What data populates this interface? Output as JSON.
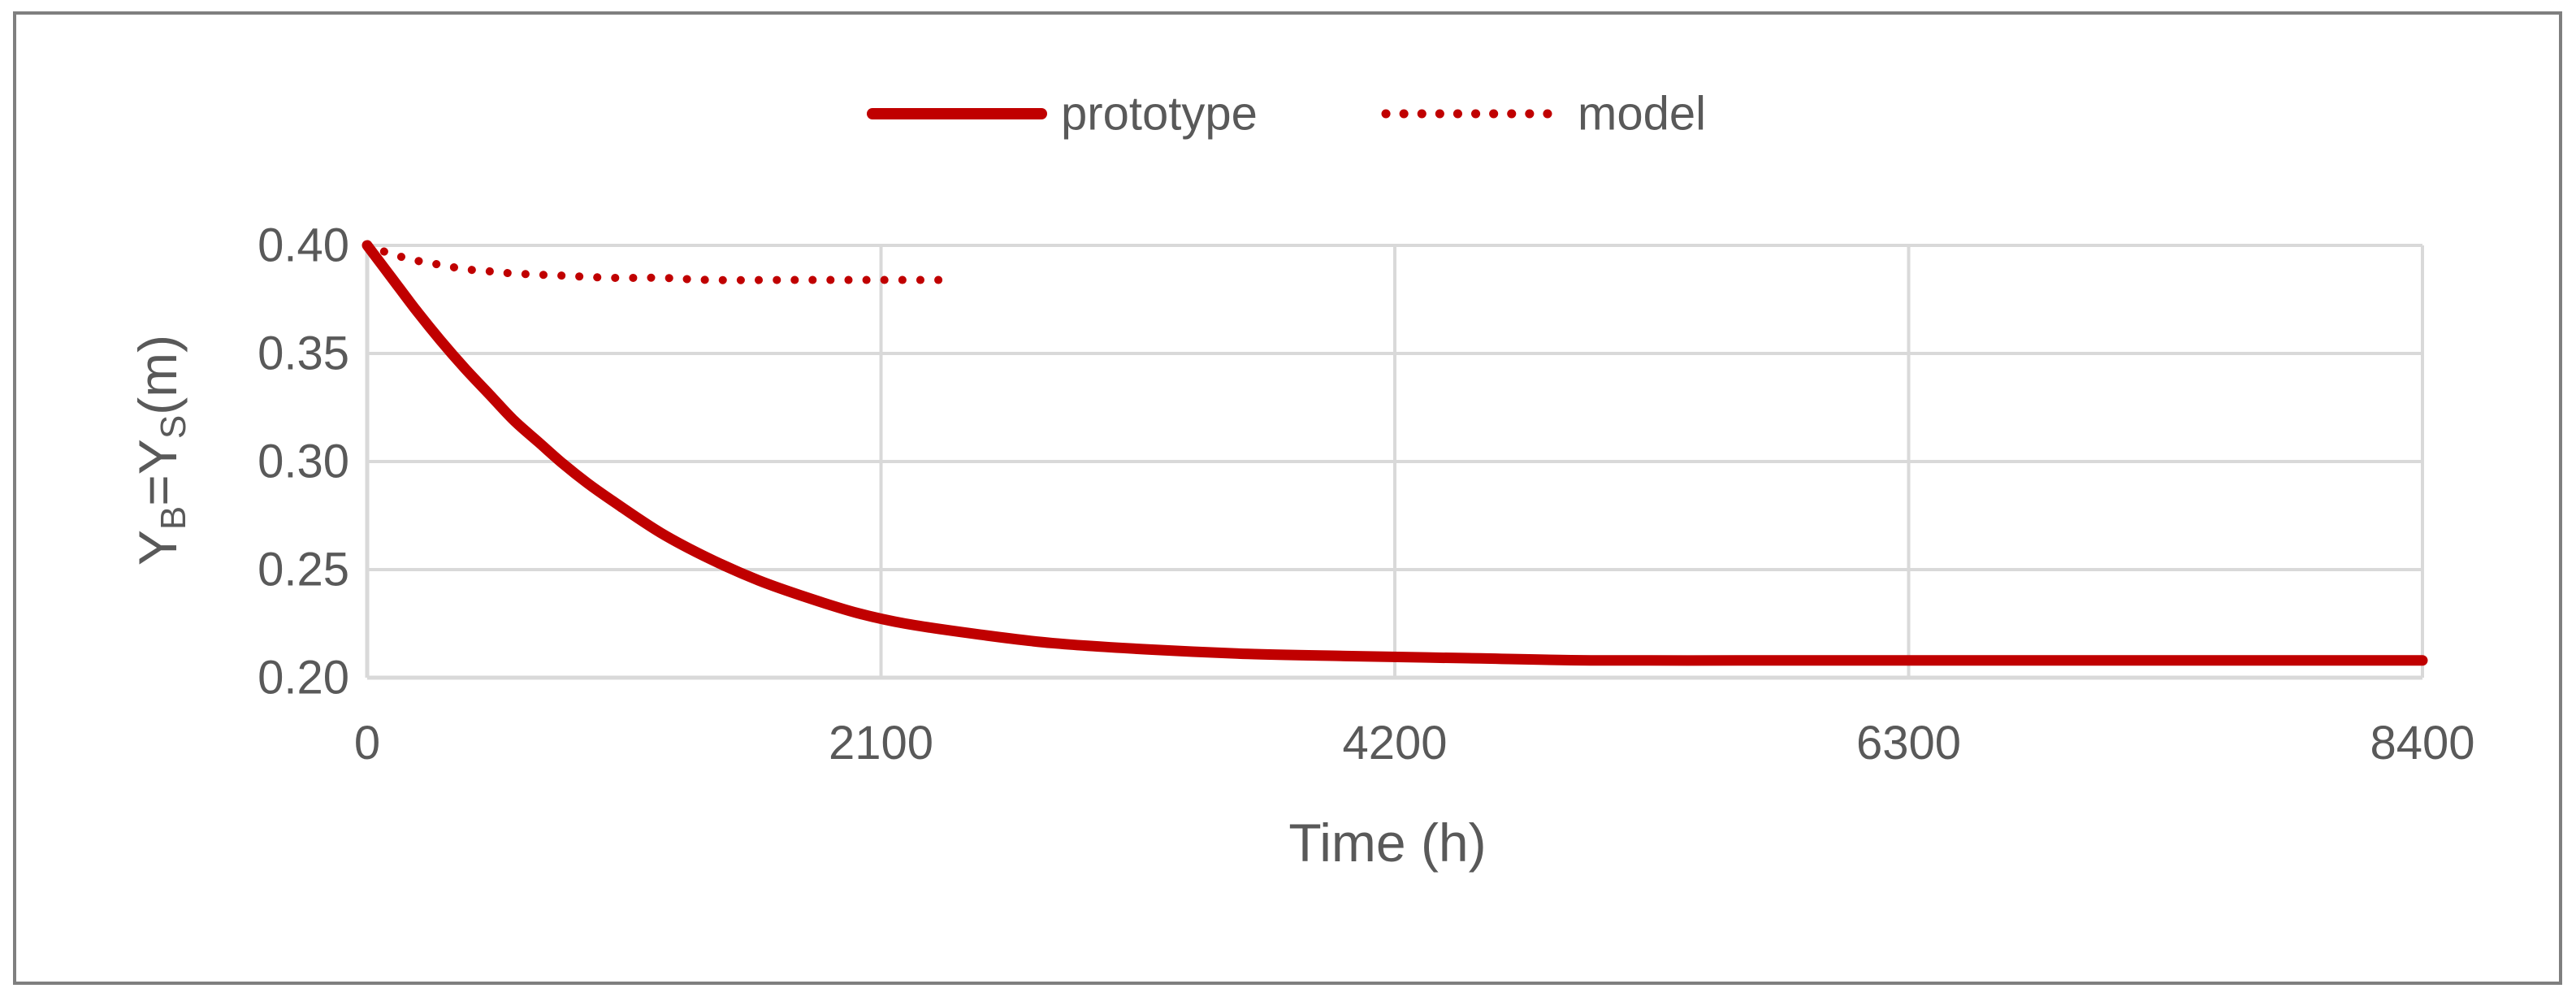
{
  "chart_data": {
    "type": "line",
    "title": "",
    "xlabel": "Time (h)",
    "ylabel_parts": [
      "Y",
      "B",
      "=Y",
      "S",
      "(m)"
    ],
    "xlim": [
      0,
      8400
    ],
    "ylim": [
      0.2,
      0.4
    ],
    "x_ticks": [
      "0",
      "2100",
      "4200",
      "6300",
      "8400"
    ],
    "y_ticks": [
      "0.20",
      "0.25",
      "0.30",
      "0.35",
      "0.40"
    ],
    "grid": true,
    "legend_position": "top-center",
    "series": [
      {
        "name": "prototype",
        "style": "solid",
        "color": "#C00000",
        "x": [
          0,
          100,
          200,
          300,
          400,
          500,
          600,
          700,
          800,
          900,
          1000,
          1200,
          1400,
          1600,
          1800,
          2000,
          2200,
          2500,
          2800,
          3200,
          3600,
          4000,
          4500,
          5000,
          5600,
          6200,
          7000,
          7800,
          8400
        ],
        "y": [
          0.4,
          0.385,
          0.37,
          0.356,
          0.343,
          0.331,
          0.319,
          0.309,
          0.299,
          0.29,
          0.282,
          0.267,
          0.255,
          0.245,
          0.237,
          0.23,
          0.225,
          0.22,
          0.216,
          0.213,
          0.211,
          0.21,
          0.209,
          0.208,
          0.208,
          0.208,
          0.208,
          0.208,
          0.208
        ]
      },
      {
        "name": "model",
        "style": "dotted",
        "color": "#C00000",
        "x": [
          0,
          100,
          200,
          300,
          400,
          500,
          600,
          800,
          1000,
          1200,
          1400,
          1700,
          2000,
          2350
        ],
        "y": [
          0.4,
          0.396,
          0.393,
          0.391,
          0.389,
          0.388,
          0.387,
          0.386,
          0.385,
          0.385,
          0.384,
          0.384,
          0.384,
          0.384
        ]
      }
    ]
  },
  "colors": {
    "series": "#C00000",
    "grid": "#D9D9D9",
    "axis": "#D9D9D9",
    "text": "#595959",
    "border": "#7F7F7F"
  }
}
